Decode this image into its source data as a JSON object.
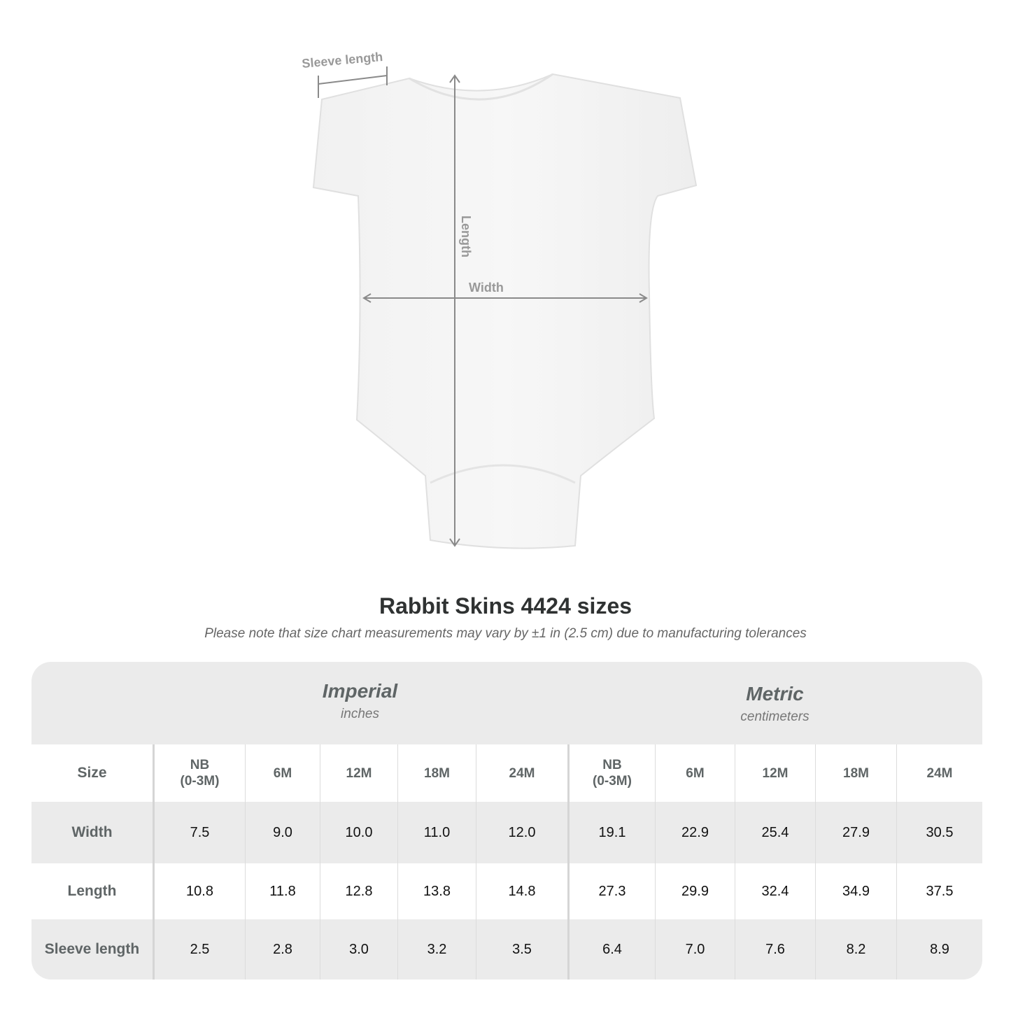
{
  "diagram": {
    "labels": {
      "sleeve": "Sleeve length",
      "length": "Length",
      "width": "Width"
    }
  },
  "title": "Rabbit Skins 4424 sizes",
  "note": "Please note that size chart measurements may vary by ±1 in (2.5 cm) due to manufacturing tolerances",
  "table": {
    "imperial": {
      "title": "Imperial",
      "unit": "inches"
    },
    "metric": {
      "title": "Metric",
      "unit": "centimeters"
    },
    "header": [
      "Size",
      "NB\n(0-3M)",
      "6M",
      "12M",
      "18M",
      "24M",
      "NB\n(0-3M)",
      "6M",
      "12M",
      "18M",
      "24M"
    ],
    "rows": [
      [
        "Width",
        "7.5",
        "9.0",
        "10.0",
        "11.0",
        "12.0",
        "19.1",
        "22.9",
        "25.4",
        "27.9",
        "30.5"
      ],
      [
        "Length",
        "10.8",
        "11.8",
        "12.8",
        "13.8",
        "14.8",
        "27.3",
        "29.9",
        "32.4",
        "34.9",
        "37.5"
      ],
      [
        "Sleeve length",
        "2.5",
        "2.8",
        "3.0",
        "3.2",
        "3.5",
        "6.4",
        "7.0",
        "7.6",
        "8.2",
        "8.9"
      ]
    ]
  },
  "colors": {
    "table_bg": "#ebebeb",
    "label": "#5f6566",
    "measure": "#8a8a8a"
  }
}
